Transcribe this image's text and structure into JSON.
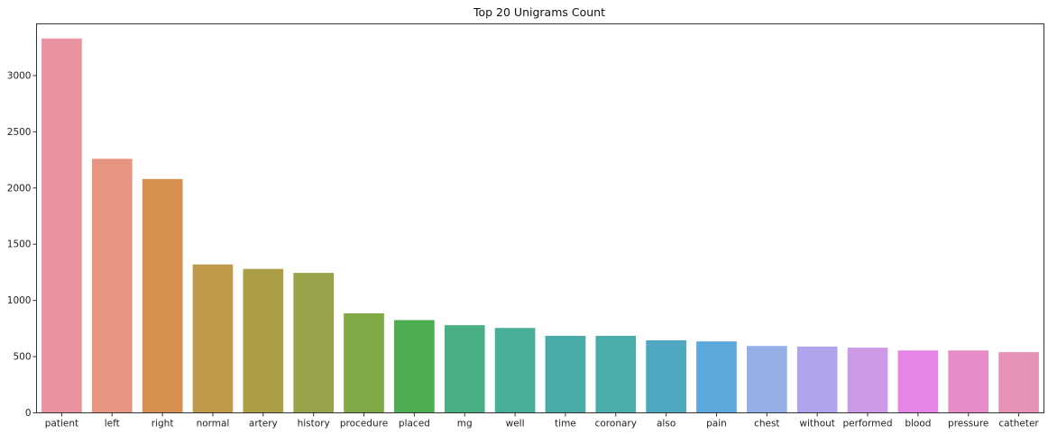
{
  "chart_data": {
    "type": "bar",
    "title": "Top 20 Unigrams Count",
    "xlabel": "",
    "ylabel": "",
    "categories": [
      "patient",
      "left",
      "right",
      "normal",
      "artery",
      "history",
      "procedure",
      "placed",
      "mg",
      "well",
      "time",
      "coronary",
      "also",
      "pain",
      "chest",
      "without",
      "performed",
      "blood",
      "pressure",
      "catheter"
    ],
    "values": [
      3330,
      2260,
      2080,
      1320,
      1280,
      1245,
      885,
      825,
      780,
      755,
      685,
      685,
      645,
      635,
      595,
      590,
      580,
      555,
      555,
      540
    ],
    "ylim": [
      0,
      3460
    ],
    "yticks": [
      0,
      500,
      1000,
      1500,
      2000,
      2500,
      3000
    ],
    "grid": false,
    "colors": [
      "#e8939f",
      "#e69580",
      "#d7914f",
      "#bf9a4a",
      "#ab9e47",
      "#9ba34a",
      "#80a946",
      "#4cae51",
      "#4ab084",
      "#49ae99",
      "#4aaba6",
      "#4bacaa",
      "#4fa8bf",
      "#5aa8dc",
      "#94aee6",
      "#b1a3eb",
      "#cb99e6",
      "#e586e6",
      "#e88cc8",
      "#e692b7"
    ]
  }
}
